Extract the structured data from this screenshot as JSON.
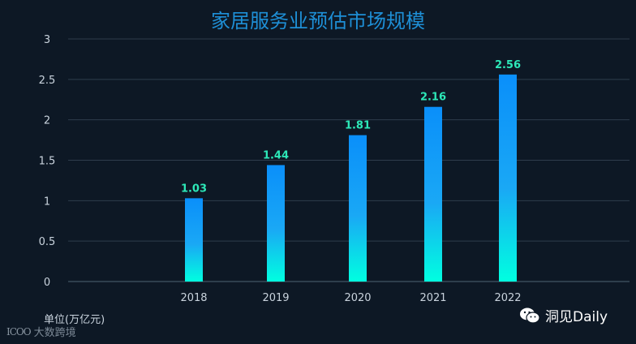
{
  "chart_data": {
    "type": "bar",
    "title": "家居服务业预估市场规模",
    "categories": [
      "2018",
      "2019",
      "2020",
      "2021",
      "2022"
    ],
    "values": [
      1.03,
      1.44,
      1.81,
      2.16,
      2.56
    ],
    "data_labels": [
      "1.03",
      "1.44",
      "1.81",
      "2.16",
      "2.56"
    ],
    "yticks": [
      "0",
      "0.5",
      "1",
      "1.5",
      "2",
      "2.5",
      "3"
    ],
    "ylim": [
      0,
      3
    ],
    "ylabel": "单位(万亿元)",
    "xlabel": "",
    "grid": true,
    "colors": {
      "bar_top": "#0a8ffa",
      "bar_mid": "#1aa8f5",
      "bar_bottom": "#00ffe0",
      "label": "#2de8b8",
      "grid": "#2e3d4c",
      "axis_text": "#c9d3dd"
    }
  },
  "watermarks": {
    "left_text": "大数跨境",
    "left_mark": "ICOO",
    "right_text": "洞见Daily",
    "right_icon": "wechat-icon"
  }
}
